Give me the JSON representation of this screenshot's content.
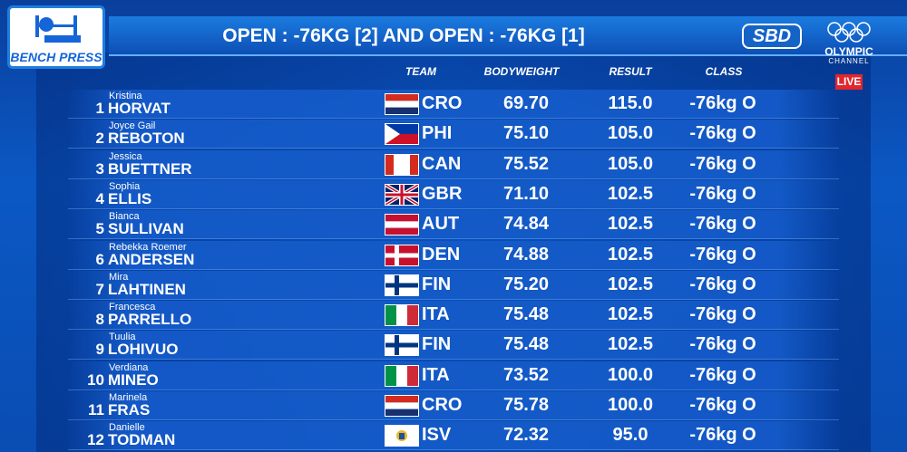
{
  "header": {
    "badge": "BENCH PRESS",
    "title": "OPEN : -76KG [2] AND OPEN : -76KG [1]",
    "logo": "SBD",
    "channel": [
      "OLYMPIC",
      "CHANNEL"
    ],
    "live": "LIVE"
  },
  "table": {
    "columns": [
      "TEAM",
      "BODYWEIGHT",
      "RESULT",
      "CLASS"
    ],
    "rows": [
      [
        1,
        "Kristina",
        "HORVAT",
        "CRO",
        "69.70",
        "115.0",
        "-76kg O"
      ],
      [
        2,
        "Joyce Gail",
        "REBOTON",
        "PHI",
        "75.10",
        "105.0",
        "-76kg O"
      ],
      [
        3,
        "Jessica",
        "BUETTNER",
        "CAN",
        "75.52",
        "105.0",
        "-76kg O"
      ],
      [
        4,
        "Sophia",
        "ELLIS",
        "GBR",
        "71.10",
        "102.5",
        "-76kg O"
      ],
      [
        5,
        "Bianca",
        "SULLIVAN",
        "AUT",
        "74.84",
        "102.5",
        "-76kg O"
      ],
      [
        6,
        "Rebekka Roemer",
        "ANDERSEN",
        "DEN",
        "74.88",
        "102.5",
        "-76kg O"
      ],
      [
        7,
        "Mira",
        "LAHTINEN",
        "FIN",
        "75.20",
        "102.5",
        "-76kg O"
      ],
      [
        8,
        "Francesca",
        "PARRELLO",
        "ITA",
        "75.48",
        "102.5",
        "-76kg O"
      ],
      [
        9,
        "Tuulia",
        "LOHIVUO",
        "FIN",
        "75.48",
        "102.5",
        "-76kg O"
      ],
      [
        10,
        "Verdiana",
        "MINEO",
        "ITA",
        "73.52",
        "100.0",
        "-76kg O"
      ],
      [
        11,
        "Marinela",
        "FRAS",
        "CRO",
        "75.78",
        "100.0",
        "-76kg O"
      ],
      [
        12,
        "Danielle",
        "TODMAN",
        "ISV",
        "72.32",
        "95.0",
        "-76kg O"
      ]
    ]
  }
}
